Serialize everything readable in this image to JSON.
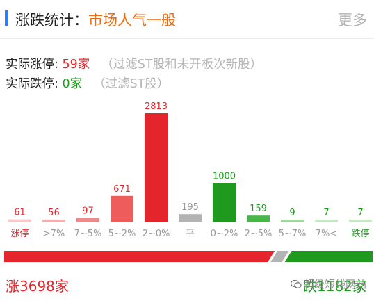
{
  "header": {
    "label": "涨跌统计：",
    "sentiment": "市场人气一般",
    "more_label": "更多"
  },
  "stats": {
    "limit_up": {
      "label": "实际涨停:",
      "value": "59家",
      "note": "（过滤ST股和未开板次新股）"
    },
    "limit_down": {
      "label": "实际跌停:",
      "value": "0家",
      "note": "（过滤ST股）"
    }
  },
  "chart_data": {
    "type": "bar",
    "categories": [
      "涨停",
      ">7%",
      "7~5%",
      "5~2%",
      "2~0%",
      "平",
      "0~2%",
      "2~5%",
      "5~7%",
      "7%<",
      "跌停"
    ],
    "values": [
      61,
      56,
      97,
      671,
      2813,
      195,
      1000,
      159,
      9,
      7,
      7
    ],
    "bar_colors": [
      "#f7c9c9",
      "#f2b0b0",
      "#ee8a8a",
      "#ee5c5c",
      "#e4262c",
      "#b3b3b3",
      "#1f9a1f",
      "#47b847",
      "#9fd79f",
      "#c4e7c4",
      "#c4e7c4"
    ],
    "label_colors": [
      "#e4262c",
      "#e4262c",
      "#e4262c",
      "#e4262c",
      "#e4262c",
      "#999999",
      "#1a9a1a",
      "#1a9a1a",
      "#1a9a1a",
      "#1a9a1a",
      "#1a9a1a"
    ],
    "cat_colors": [
      "#e4262c",
      "#999999",
      "#999999",
      "#999999",
      "#999999",
      "#999999",
      "#999999",
      "#999999",
      "#999999",
      "#999999",
      "#1a9a1a"
    ],
    "ylim": [
      0,
      2813
    ]
  },
  "ratio_bar": {
    "up_count": 3698,
    "flat_count": 195,
    "down_count": 1182,
    "colors": {
      "up": "#e4262c",
      "flat": "#b3b3b3",
      "down": "#1f9a1f"
    }
  },
  "summary": {
    "up_text": "涨3698家",
    "down_text": "跌1182家"
  },
  "watermark": {
    "text": "超级短线网站"
  }
}
